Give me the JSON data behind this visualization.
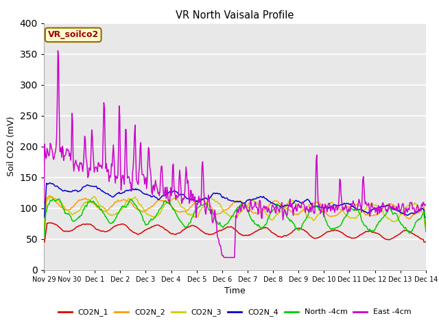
{
  "title": "VR North Vaisala Profile",
  "xlabel": "Time",
  "ylabel": "Soil CO2 (mV)",
  "ylim": [
    0,
    400
  ],
  "background_color": "#e8e8e8",
  "grid_color": "white",
  "annotation_text": "VR_soilco2",
  "annotation_facecolor": "#ffffcc",
  "annotation_edgecolor": "#996600",
  "annotation_textcolor": "#990000",
  "x_tick_labels": [
    "Nov 29",
    "Nov 30",
    "Dec 1",
    "Dec 2",
    "Dec 3",
    "Dec 4",
    "Dec 5",
    "Dec 6",
    "Dec 7",
    "Dec 8",
    "Dec 9",
    "Dec 10",
    "Dec 11",
    "Dec 12",
    "Dec 13",
    "Dec 14"
  ],
  "legend_labels": [
    "CO2N_1",
    "CO2N_2",
    "CO2N_3",
    "CO2N_4",
    "North -4cm",
    "East -4cm"
  ],
  "legend_colors": [
    "#dd0000",
    "#ff9900",
    "#cccc00",
    "#0000cc",
    "#00cc00",
    "#cc00cc"
  ]
}
